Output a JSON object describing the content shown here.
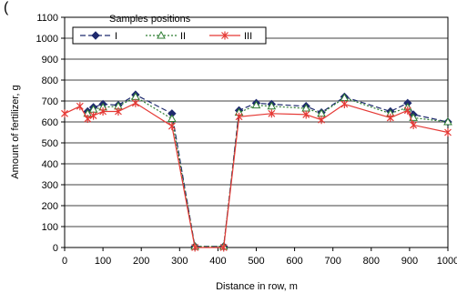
{
  "heading_fragment": "(",
  "chart_data": {
    "type": "line",
    "title": "",
    "xlabel": "Distance in row, m",
    "ylabel": "Amount of fertilizer, g",
    "xlim": [
      0,
      1000
    ],
    "ylim": [
      0,
      1100
    ],
    "x_ticks": [
      0,
      100,
      200,
      300,
      400,
      500,
      600,
      700,
      800,
      900,
      1000
    ],
    "y_ticks": [
      0,
      100,
      200,
      300,
      400,
      500,
      600,
      700,
      800,
      900,
      1000,
      1100
    ],
    "grid": true,
    "legend": {
      "title": "Samples positions",
      "placement": "top-left"
    },
    "series": [
      {
        "name": "I",
        "color": "#1f2a6e",
        "line_style": "dash",
        "marker": "diamond",
        "points": [
          [
            60,
            650
          ],
          [
            75,
            670
          ],
          [
            100,
            685
          ],
          [
            140,
            680
          ],
          [
            185,
            730
          ],
          [
            280,
            640
          ],
          [
            340,
            5
          ],
          [
            415,
            5
          ],
          [
            455,
            655
          ],
          [
            500,
            690
          ],
          [
            540,
            685
          ],
          [
            630,
            675
          ],
          [
            670,
            645
          ],
          [
            730,
            720
          ],
          [
            850,
            650
          ],
          [
            895,
            690
          ],
          [
            910,
            635
          ],
          [
            1000,
            600
          ]
        ]
      },
      {
        "name": "II",
        "color": "#2e7d32",
        "line_style": "dot",
        "marker": "triangle",
        "points": [
          [
            60,
            640
          ],
          [
            75,
            660
          ],
          [
            100,
            670
          ],
          [
            140,
            675
          ],
          [
            185,
            720
          ],
          [
            280,
            615
          ],
          [
            340,
            5
          ],
          [
            415,
            5
          ],
          [
            455,
            645
          ],
          [
            500,
            680
          ],
          [
            540,
            675
          ],
          [
            630,
            665
          ],
          [
            670,
            640
          ],
          [
            730,
            715
          ],
          [
            850,
            640
          ],
          [
            895,
            670
          ],
          [
            910,
            620
          ],
          [
            1000,
            600
          ]
        ]
      },
      {
        "name": "III",
        "color": "#e53935",
        "line_style": "solid",
        "marker": "star",
        "points": [
          [
            0,
            640
          ],
          [
            40,
            675
          ],
          [
            60,
            615
          ],
          [
            75,
            630
          ],
          [
            100,
            650
          ],
          [
            140,
            650
          ],
          [
            185,
            690
          ],
          [
            280,
            580
          ],
          [
            340,
            0
          ],
          [
            415,
            0
          ],
          [
            455,
            625
          ],
          [
            540,
            640
          ],
          [
            630,
            635
          ],
          [
            670,
            610
          ],
          [
            730,
            685
          ],
          [
            850,
            620
          ],
          [
            895,
            655
          ],
          [
            910,
            585
          ],
          [
            1000,
            550
          ]
        ]
      }
    ]
  }
}
